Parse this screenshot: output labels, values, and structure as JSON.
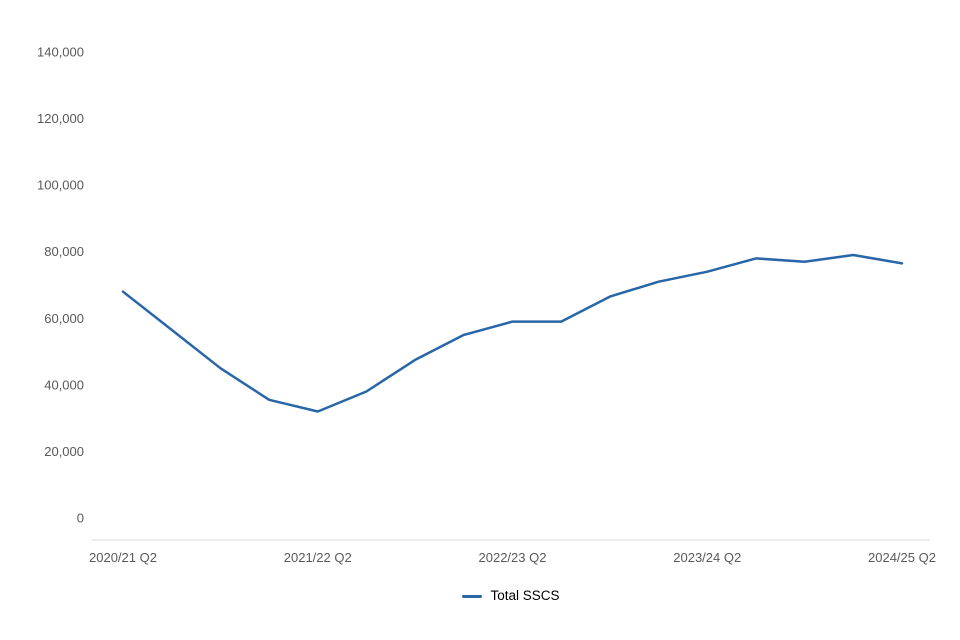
{
  "chart_data": {
    "type": "line",
    "title": "",
    "xlabel": "",
    "ylabel": "",
    "x": [
      "2020/21 Q2",
      "2020/21 Q3",
      "2020/21 Q4",
      "2021/22 Q1",
      "2021/22 Q2",
      "2021/22 Q3",
      "2021/22 Q4",
      "2022/23 Q1",
      "2022/23 Q2",
      "2022/23 Q3",
      "2022/23 Q4",
      "2023/24 Q1",
      "2023/24 Q2",
      "2023/24 Q3",
      "2023/24 Q4",
      "2024/25 Q1",
      "2024/25 Q2"
    ],
    "series": [
      {
        "name": "Total SSCS",
        "color": "#2866a8",
        "values": [
          68000,
          56500,
          45000,
          35500,
          32000,
          38000,
          47500,
          55000,
          59000,
          59000,
          66500,
          71000,
          74000,
          78000,
          77000,
          79000,
          76500
        ]
      }
    ],
    "ylim": [
      0,
      140000
    ],
    "y_ticks": [
      0,
      20000,
      40000,
      60000,
      80000,
      100000,
      120000,
      140000
    ],
    "y_tick_labels": [
      "0",
      "20,000",
      "40,000",
      "60,000",
      "80,000",
      "100,000",
      "120,000",
      "140,000"
    ],
    "x_tick_labels_shown": [
      "2020/21 Q2",
      "2021/22 Q2",
      "2022/23 Q2",
      "2023/24 Q2",
      "2024/25 Q2"
    ],
    "x_tick_every": 4,
    "grid": false,
    "legend_position": "bottom-center",
    "colors": {
      "line": "#2866a8",
      "axis_line": "#d9d9d9",
      "tick_label": "#595959",
      "legend_text": "#000000",
      "background": "#ffffff"
    }
  },
  "legend": {
    "items": [
      {
        "label": "Total SSCS",
        "color": "#2866a8"
      }
    ]
  }
}
